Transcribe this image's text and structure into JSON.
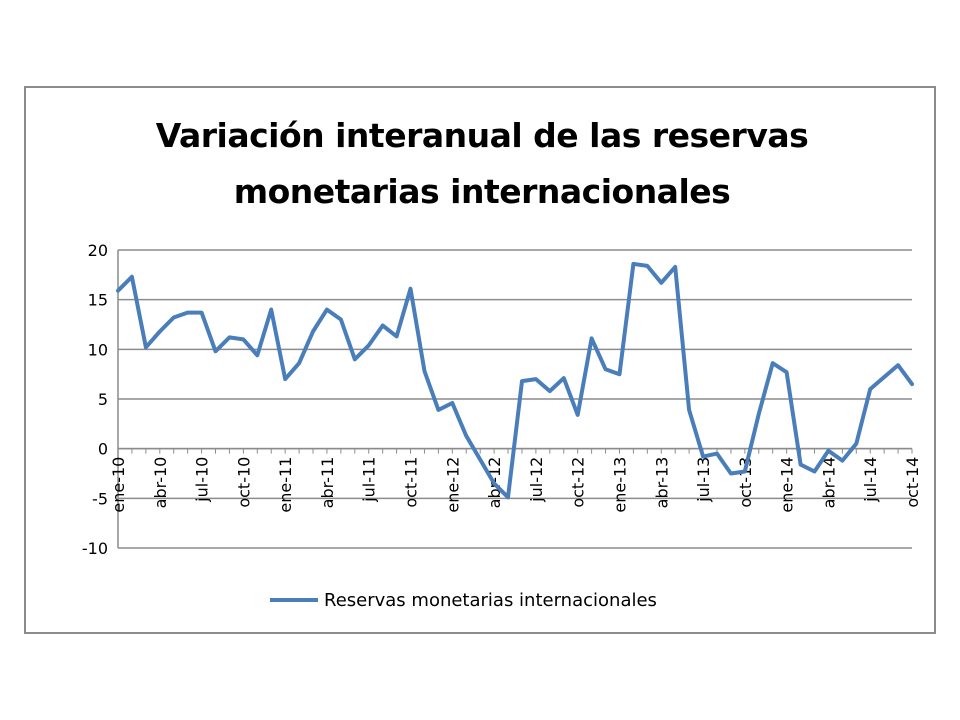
{
  "chart_data": {
    "type": "line",
    "title_line1": "Variación interanual de las reservas",
    "title_line2": "monetarias internacionales",
    "xlabel": "",
    "ylabel": "",
    "ylim": [
      -10,
      20
    ],
    "y_ticks": [
      20,
      15,
      10,
      5,
      0,
      -5,
      -10
    ],
    "grid": true,
    "legend_position": "bottom",
    "categories": [
      "ene-10",
      "feb-10",
      "mar-10",
      "abr-10",
      "may-10",
      "jun-10",
      "jul-10",
      "ago-10",
      "sep-10",
      "oct-10",
      "nov-10",
      "dic-10",
      "ene-11",
      "feb-11",
      "mar-11",
      "abr-11",
      "may-11",
      "jun-11",
      "jul-11",
      "ago-11",
      "sep-11",
      "oct-11",
      "nov-11",
      "dic-11",
      "ene-12",
      "feb-12",
      "mar-12",
      "abr-12",
      "may-12",
      "jun-12",
      "jul-12",
      "ago-12",
      "sep-12",
      "oct-12",
      "nov-12",
      "dic-12",
      "ene-13",
      "feb-13",
      "mar-13",
      "abr-13",
      "may-13",
      "jun-13",
      "jul-13",
      "ago-13",
      "sep-13",
      "oct-13",
      "nov-13",
      "dic-13",
      "ene-14",
      "feb-14",
      "mar-14",
      "abr-14",
      "may-14",
      "jun-14",
      "jul-14",
      "ago-14",
      "sep-14",
      "oct-14"
    ],
    "x_tick_labels": [
      "ene-10",
      "abr-10",
      "jul-10",
      "oct-10",
      "ene-11",
      "abr-11",
      "jul-11",
      "oct-11",
      "ene-12",
      "abr-12",
      "jul-12",
      "oct-12",
      "ene-13",
      "abr-13",
      "jul-13",
      "oct-13",
      "ene-14",
      "abr-14",
      "jul-14",
      "oct-14"
    ],
    "series": [
      {
        "name": "Reservas monetarias internacionales",
        "color": "#4a7ebb",
        "values": [
          15.9,
          17.3,
          10.2,
          11.8,
          13.2,
          13.7,
          13.7,
          9.8,
          11.2,
          11.0,
          9.4,
          14.0,
          7.0,
          8.6,
          11.8,
          14.0,
          13.0,
          9.0,
          10.4,
          12.4,
          11.3,
          16.1,
          7.8,
          3.9,
          4.6,
          1.3,
          -1.1,
          -3.5,
          -4.9,
          6.8,
          7.0,
          5.8,
          7.1,
          3.4,
          11.1,
          8.0,
          7.5,
          18.6,
          18.4,
          16.7,
          18.3,
          3.9,
          -0.8,
          -0.5,
          -2.5,
          -2.3,
          3.5,
          8.6,
          7.7,
          -1.6,
          -2.3,
          -0.2,
          -1.2,
          0.5,
          6.0,
          7.2,
          8.4,
          6.5
        ]
      }
    ]
  }
}
